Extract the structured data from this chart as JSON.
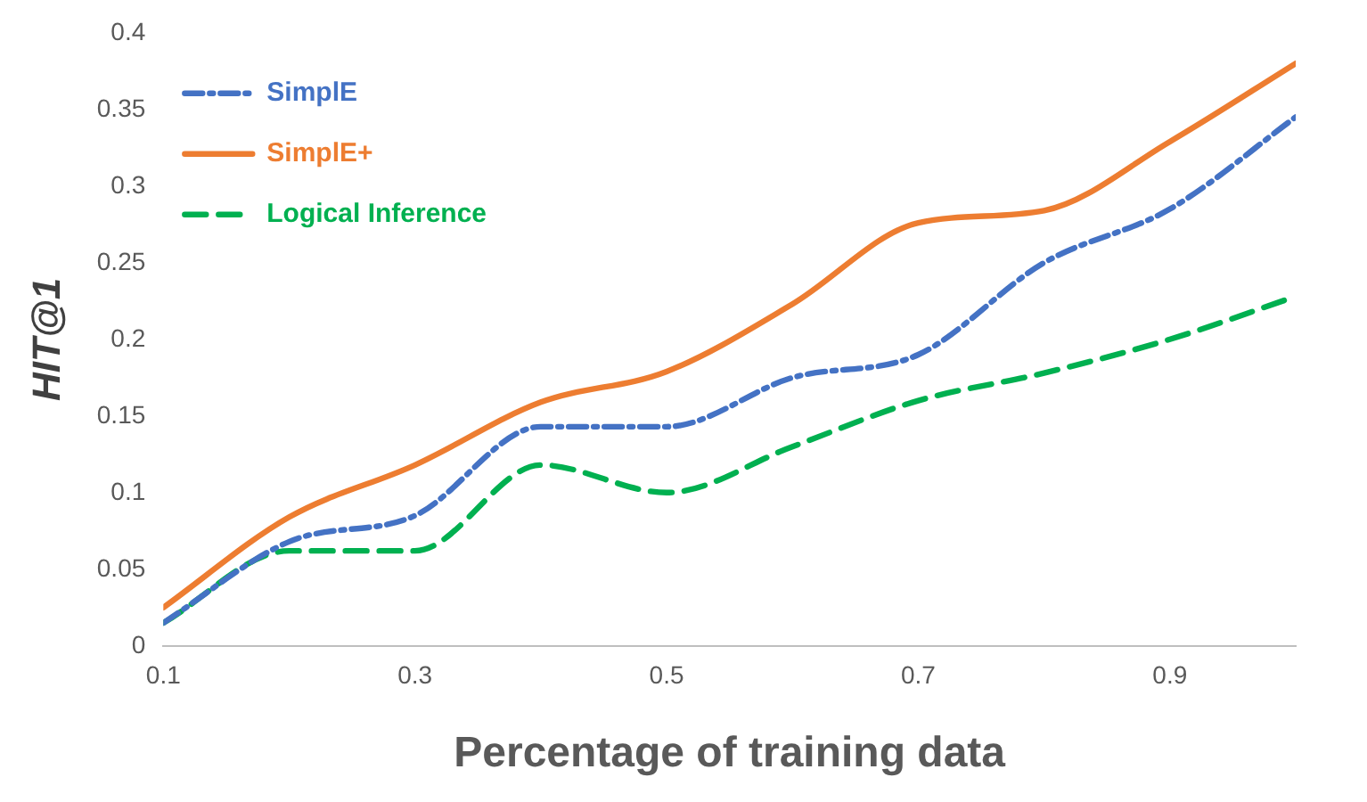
{
  "chart_data": {
    "type": "line",
    "xlabel": "Percentage of training data",
    "ylabel": "HIT@1",
    "x": [
      0.1,
      0.2,
      0.3,
      0.4,
      0.5,
      0.6,
      0.7,
      0.8,
      0.9,
      1.0
    ],
    "series": [
      {
        "name": "SimplE",
        "color": "#4472c4",
        "line_style": "dashdot",
        "values": [
          0.015,
          0.068,
          0.085,
          0.143,
          0.143,
          0.175,
          0.19,
          0.25,
          0.285,
          0.345
        ]
      },
      {
        "name": "SimplE+",
        "color": "#ed7d31",
        "line_style": "solid",
        "values": [
          0.025,
          0.084,
          0.118,
          0.159,
          0.179,
          0.223,
          0.276,
          0.284,
          0.329,
          0.38
        ]
      },
      {
        "name": "Logical Inference",
        "color": "#00b050",
        "line_style": "dashed",
        "values": [
          0.015,
          0.062,
          0.062,
          0.118,
          0.1,
          0.13,
          0.16,
          0.178,
          0.2,
          0.228
        ]
      }
    ],
    "xlim": [
      0.1,
      1.0
    ],
    "xticks": [
      0.1,
      0.3,
      0.5,
      0.7,
      0.9
    ],
    "ylim": [
      0,
      0.4
    ],
    "yticks": [
      0,
      0.05,
      0.1,
      0.15,
      0.2,
      0.25,
      0.3,
      0.35,
      0.4
    ],
    "grid": false,
    "legend": "top left",
    "marker": "none"
  }
}
